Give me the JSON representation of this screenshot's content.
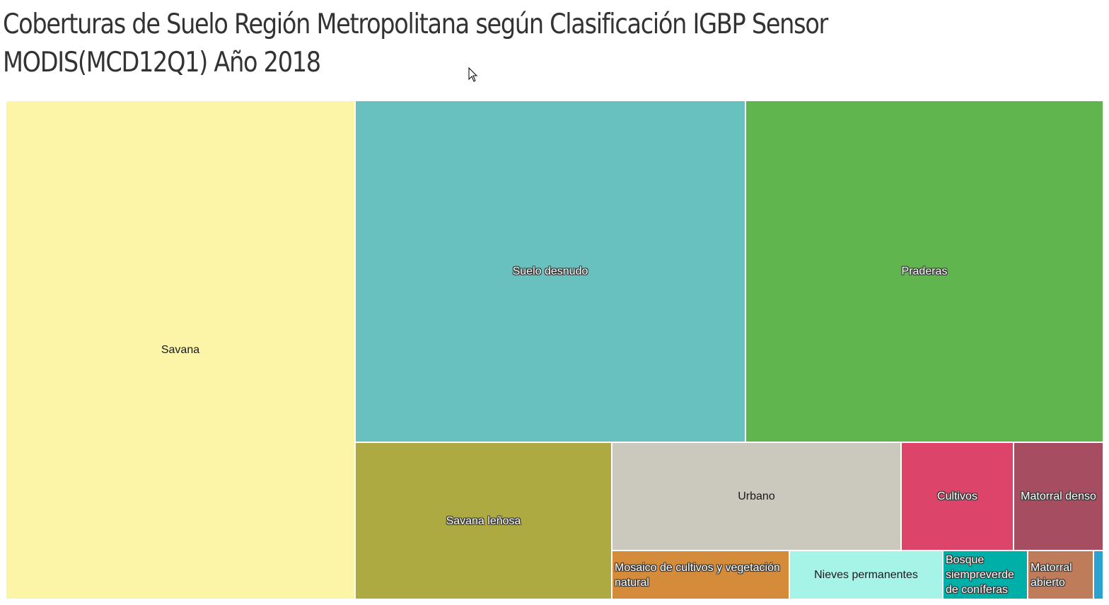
{
  "title": "Coberturas de Suelo Región Metropolitana según Clasificación IGBP Sensor MODIS(MCD12Q1) Año 2018",
  "chart_data": {
    "type": "treemap",
    "title": "Coberturas de Suelo Región Metropolitana según Clasificación IGBP Sensor MODIS(MCD12Q1) Año 2018",
    "note": "Relative areas estimated from tile sizes (percent of total area shown)",
    "items": [
      {
        "label": "Savana",
        "value": 31.8,
        "color": "#fcf5a8",
        "text_color": "#1a1a1a"
      },
      {
        "label": "Suelo desnudo",
        "value": 24.3,
        "color": "#68c1bf",
        "text_color": "#ffffff"
      },
      {
        "label": "Praderas",
        "value": 23.6,
        "color": "#61b54e",
        "text_color": "#ffffff"
      },
      {
        "label": "Savana leñosa",
        "value": 5.2,
        "color": "#aeaa42",
        "text_color": "#ffffff"
      },
      {
        "label": "Urbano",
        "value": 4.5,
        "color": "#cbc8be",
        "text_color": "#1a1a1a"
      },
      {
        "label": "Cultivos",
        "value": 2.5,
        "color": "#dc4569",
        "text_color": "#ffffff"
      },
      {
        "label": "Matorral denso",
        "value": 2.2,
        "color": "#a64d61",
        "text_color": "#ffffff"
      },
      {
        "label": "Mosaico de cultivos y vegetación natural",
        "value": 1.5,
        "color": "#d48b3a",
        "text_color": "#ffffff"
      },
      {
        "label": "Nieves permanentes",
        "value": 1.3,
        "color": "#a6f3e7",
        "text_color": "#1a1a1a"
      },
      {
        "label": "Bosque siempreverde de coníferas",
        "value": 0.7,
        "color": "#00b0a8",
        "text_color": "#ffffff"
      },
      {
        "label": "Matorral abierto",
        "value": 0.5,
        "color": "#bf7c5a",
        "text_color": "#ffffff"
      },
      {
        "label": "",
        "value": 0.1,
        "color": "#2ba2d0",
        "text_color": "#ffffff"
      }
    ]
  }
}
